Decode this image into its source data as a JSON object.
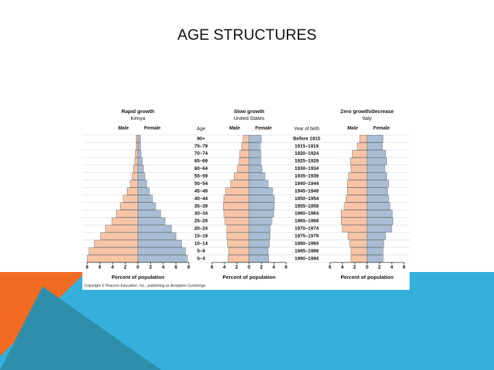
{
  "title": "AGE STRUCTURES",
  "age_label": "Age",
  "ages": [
    "0–4",
    "5–9",
    "10–14",
    "15–19",
    "20–24",
    "25–29",
    "30–34",
    "35–39",
    "40–44",
    "45–49",
    "50–54",
    "55–59",
    "60–64",
    "65–69",
    "70–74",
    "75–79",
    "80+"
  ],
  "year_label": "Year of birth",
  "years": [
    "1990–1994",
    "1985–1989",
    "1980–1984",
    "1975–1979",
    "1970–1974",
    "1965–1969",
    "1960–1964",
    "1955–1959",
    "1950–1954",
    "1945–1949",
    "1940–1944",
    "1935–1939",
    "1930–1934",
    "1925–1929",
    "1920–1924",
    "1915–1919",
    "Before 1915"
  ],
  "copyright": "Copyright © Pearson Education, Inc., publishing as Benjamin Cummings",
  "chart_data": [
    {
      "type": "pyramid",
      "title": "Rapid growth",
      "subtitle": "Kenya",
      "xlabel": "Percent of population",
      "xlim": [
        -8,
        8
      ],
      "xticks": [
        {
          "value": -8,
          "label": "8"
        },
        {
          "value": -6,
          "label": "6"
        },
        {
          "value": -4,
          "label": "4"
        },
        {
          "value": -2,
          "label": "2"
        },
        0,
        2,
        4,
        6,
        8
      ],
      "series": [
        {
          "name": "Male",
          "color": "#f8c4a6",
          "values": [
            -8.0,
            -7.7,
            -6.9,
            -5.9,
            -5.1,
            -4.1,
            -3.4,
            -2.8,
            -2.3,
            -1.7,
            -1.2,
            -0.9,
            -0.7,
            -0.5,
            -0.4,
            -0.3,
            -0.3
          ]
        },
        {
          "name": "Female",
          "color": "#a8bdd4",
          "values": [
            7.8,
            7.5,
            6.9,
            6.0,
            5.3,
            4.3,
            3.6,
            2.8,
            2.3,
            1.8,
            1.4,
            1.1,
            0.9,
            0.7,
            0.5,
            0.4,
            0.4
          ]
        }
      ]
    },
    {
      "type": "pyramid",
      "title": "Slow growth",
      "subtitle": "United States",
      "xlabel": "Percent of population",
      "xlim": [
        -6,
        6
      ],
      "xticks": [
        {
          "value": -6,
          "label": "6"
        },
        {
          "value": -4,
          "label": "4"
        },
        {
          "value": -2,
          "label": "2"
        },
        0,
        2,
        4,
        6
      ],
      "series": [
        {
          "name": "Male",
          "color": "#f8c4a6",
          "values": [
            -3.4,
            -3.3,
            -3.5,
            -3.6,
            -3.6,
            -3.9,
            -4.1,
            -4.2,
            -4.1,
            -3.8,
            -3.0,
            -2.4,
            -1.9,
            -1.6,
            -1.5,
            -1.2,
            -1.0
          ]
        },
        {
          "name": "Female",
          "color": "#a8bdd4",
          "values": [
            3.2,
            3.1,
            3.3,
            3.4,
            3.4,
            3.7,
            4.0,
            4.1,
            4.1,
            3.8,
            3.1,
            2.6,
            2.1,
            1.9,
            1.9,
            1.8,
            2.0
          ]
        }
      ]
    },
    {
      "type": "pyramid",
      "title": "Zero growth/decrease",
      "subtitle": "Italy",
      "xlabel": "Percent of population",
      "xlim": [
        -6,
        6
      ],
      "xticks": [
        {
          "value": -6,
          "label": "6"
        },
        {
          "value": -4,
          "label": "4"
        },
        {
          "value": -2,
          "label": "2"
        },
        0,
        2,
        4,
        6
      ],
      "series": [
        {
          "name": "Male",
          "color": "#f8c4a6",
          "values": [
            -2.6,
            -2.6,
            -2.8,
            -3.1,
            -4.0,
            -4.2,
            -4.2,
            -3.7,
            -3.4,
            -3.2,
            -3.2,
            -3.0,
            -2.6,
            -2.7,
            -2.4,
            -1.6,
            -1.2
          ]
        },
        {
          "name": "Female",
          "color": "#a8bdd4",
          "values": [
            2.6,
            2.6,
            2.7,
            3.0,
            4.0,
            4.2,
            4.1,
            3.7,
            3.5,
            3.3,
            3.5,
            3.2,
            2.9,
            3.2,
            3.0,
            2.5,
            2.6
          ]
        }
      ]
    }
  ]
}
